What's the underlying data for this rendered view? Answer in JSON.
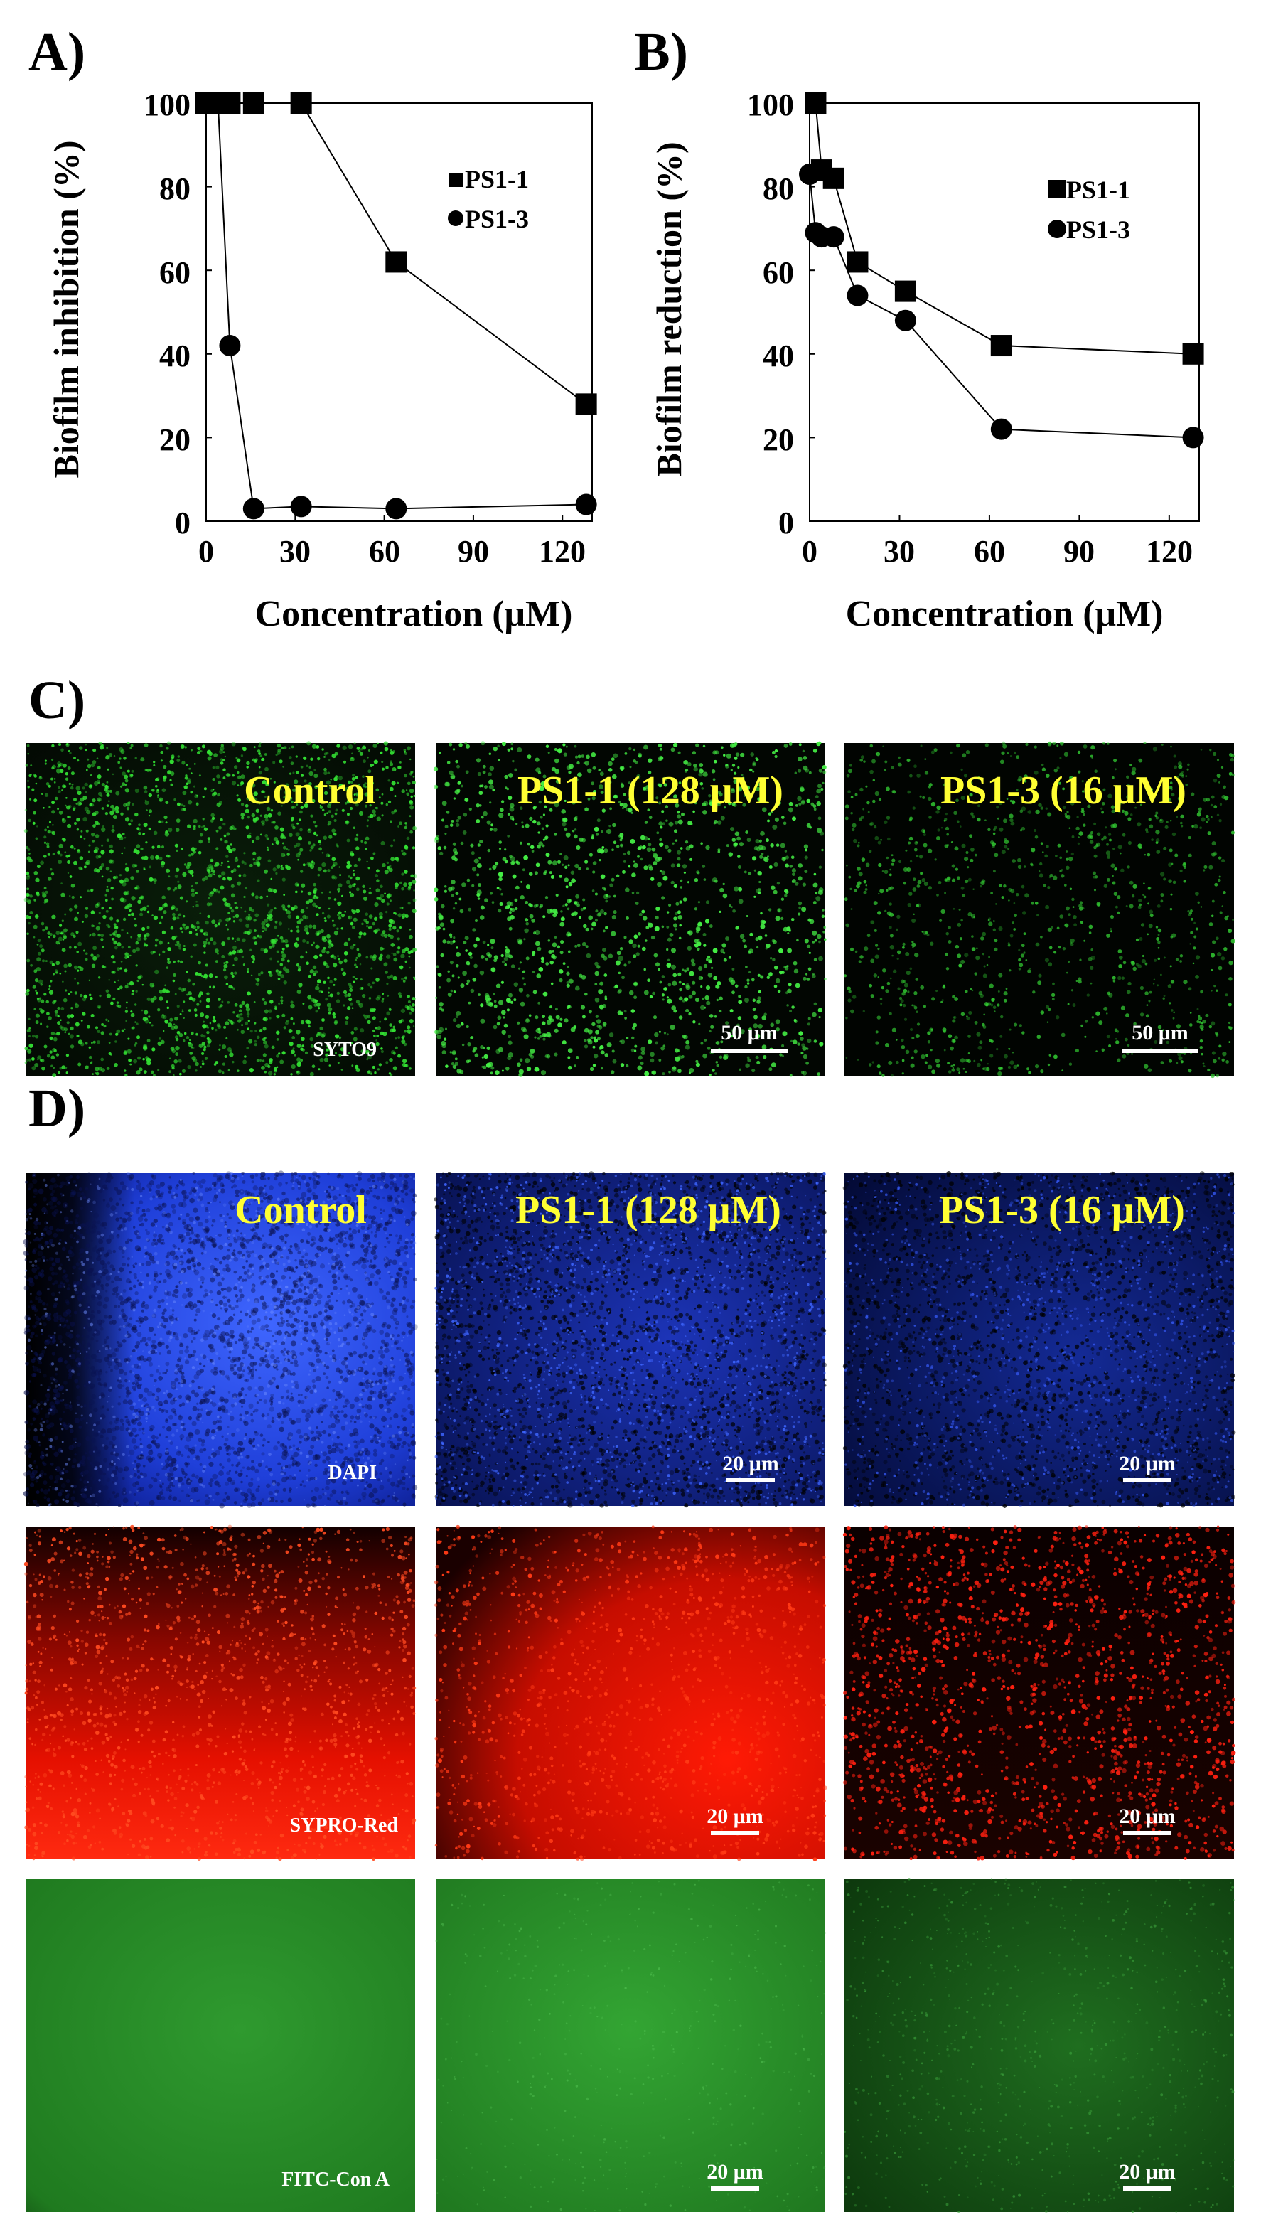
{
  "panels": {
    "A": "A)",
    "B": "B)",
    "C": "C)",
    "D": "D)"
  },
  "chart_data": [
    {
      "type": "line",
      "xlabel": "Concentration (μM)",
      "ylabel": "Biofilm inhibition (%)",
      "xlim": [
        0,
        130
      ],
      "ylim": [
        0,
        100
      ],
      "xticks": [
        "0",
        "30",
        "60",
        "90",
        "120"
      ],
      "yticks": [
        "0",
        "20",
        "40",
        "60",
        "80",
        "100"
      ],
      "grid": false,
      "legend_position": "top-right",
      "series": [
        {
          "name": "PS1-1",
          "marker": "square",
          "x": [
            0,
            2,
            4,
            8,
            16,
            32,
            64,
            128
          ],
          "y": [
            100,
            100,
            100,
            100,
            100,
            100,
            62,
            28
          ]
        },
        {
          "name": "PS1-3",
          "marker": "circle",
          "x": [
            0,
            2,
            4,
            8,
            16,
            32,
            64,
            128
          ],
          "y": [
            100,
            100,
            100,
            42,
            3,
            3.5,
            3,
            4
          ]
        }
      ]
    },
    {
      "type": "line",
      "xlabel": "Concentration (μM)",
      "ylabel": "Biofilm reduction (%)",
      "xlim": [
        0,
        130
      ],
      "ylim": [
        0,
        100
      ],
      "xticks": [
        "0",
        "30",
        "60",
        "90",
        "120"
      ],
      "yticks": [
        "0",
        "20",
        "40",
        "60",
        "80",
        "100"
      ],
      "grid": false,
      "legend_position": "top-right",
      "series": [
        {
          "name": "PS1-1",
          "marker": "square",
          "x": [
            2,
            4,
            8,
            16,
            32,
            64,
            128
          ],
          "y": [
            100,
            84,
            82,
            62,
            55,
            42,
            40
          ]
        },
        {
          "name": "PS1-3",
          "marker": "circle",
          "x": [
            0,
            2,
            4,
            8,
            16,
            32,
            64,
            128
          ],
          "y": [
            83,
            69,
            68,
            68,
            54,
            48,
            22,
            20
          ]
        }
      ]
    }
  ],
  "micrographs": {
    "titles": [
      "Control",
      "PS1-1 (128 μM)",
      "PS1-3 (16 μM)"
    ],
    "stains": {
      "syto9": "SYTO9",
      "dapi": "DAPI",
      "sypro": "SYPRO-Red",
      "fitc": "FITC-Con A"
    },
    "scalebars": {
      "c": "50 μm",
      "d": "20 μm"
    },
    "colors": {
      "title": "#ffff33",
      "green": "#22dd22",
      "blue": "#2a4cff",
      "red": "#ff1a0a",
      "fitc": "#2aa02a"
    }
  }
}
